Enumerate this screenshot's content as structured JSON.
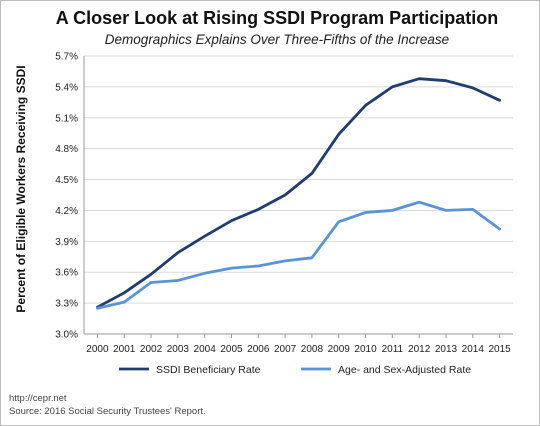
{
  "chart_data": {
    "type": "line",
    "title": "A Closer Look at Rising SSDI Program Participation",
    "subtitle": "Demographics Explains Over Three-Fifths of the Increase",
    "ylabel": "Percent of Eligible Workers Receiving SSDI",
    "xlabel": "",
    "x": [
      "2000",
      "2001",
      "2002",
      "2003",
      "2004",
      "2005",
      "2006",
      "2007",
      "2008",
      "2009",
      "2010",
      "2011",
      "2012",
      "2013",
      "2014",
      "2015"
    ],
    "yticks": [
      "3.0%",
      "3.3%",
      "3.6%",
      "3.9%",
      "4.2%",
      "4.5%",
      "4.8%",
      "5.1%",
      "5.4%",
      "5.7%"
    ],
    "ylim": [
      3.0,
      5.7
    ],
    "grid": "horizontal",
    "legend_position": "bottom",
    "series": [
      {
        "name": "SSDI Beneficiary Rate",
        "color": "#1f3d6e",
        "values": [
          3.26,
          3.4,
          3.58,
          3.79,
          3.95,
          4.1,
          4.21,
          4.35,
          4.56,
          4.94,
          5.22,
          5.4,
          5.48,
          5.46,
          5.39,
          5.27
        ]
      },
      {
        "name": "Age- and Sex-Adjusted Rate",
        "color": "#5b93d8",
        "values": [
          3.25,
          3.31,
          3.5,
          3.52,
          3.59,
          3.64,
          3.66,
          3.71,
          3.74,
          4.09,
          4.18,
          4.2,
          4.28,
          4.2,
          4.21,
          4.02
        ]
      }
    ]
  },
  "footer": {
    "source_url": "http://cepr.net",
    "source_note": "Source: 2016 Social Security Trustees' Report."
  }
}
